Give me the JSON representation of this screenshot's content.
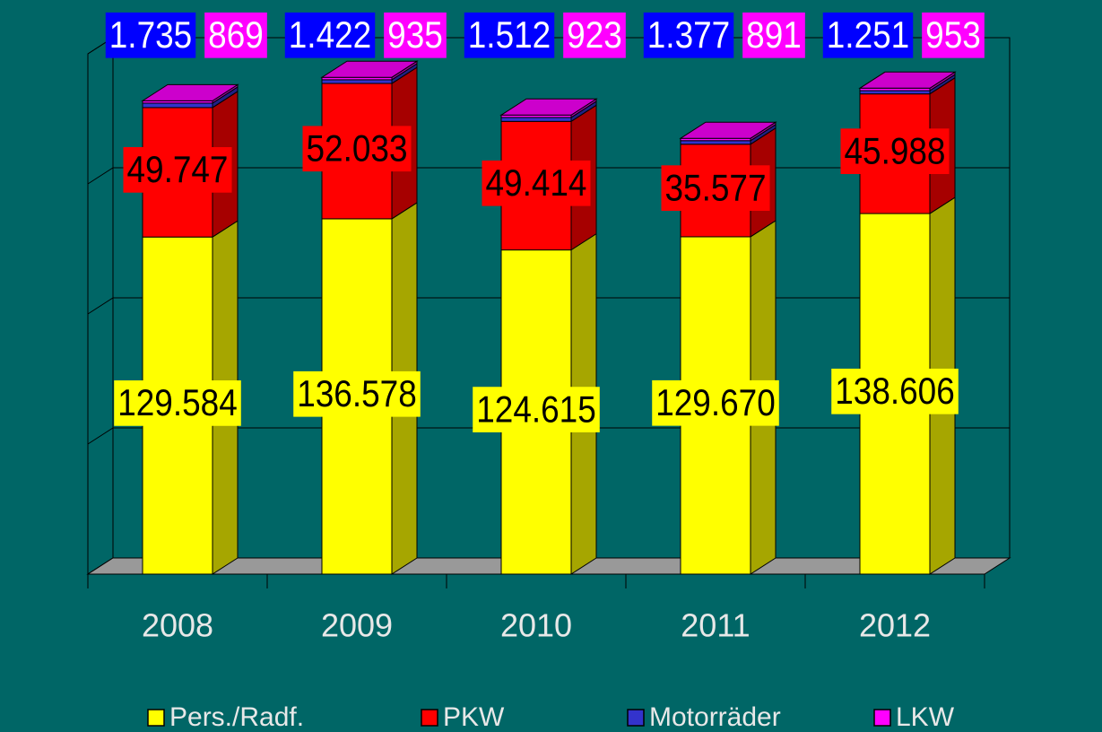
{
  "chart_data": {
    "type": "bar3d_stacked",
    "categories": [
      "2008",
      "2009",
      "2010",
      "2011",
      "2012"
    ],
    "series": [
      {
        "name": "Pers./Radf.",
        "color": "#ffff00",
        "values": [
          129584,
          136578,
          124615,
          129670,
          138606
        ],
        "value_labels": [
          "129.584",
          "136.578",
          "124.615",
          "129.670",
          "138.606"
        ]
      },
      {
        "name": "PKW",
        "color": "#ff0000",
        "values": [
          49747,
          52033,
          49414,
          35577,
          45988
        ],
        "value_labels": [
          "49.747",
          "52.033",
          "49.414",
          "35.577",
          "45.988"
        ]
      },
      {
        "name": "Motorräder",
        "color": "#3333cc",
        "values": [
          1735,
          1422,
          1512,
          1377,
          1251
        ],
        "value_labels": [
          "1.735",
          "1.422",
          "1.512",
          "1.377",
          "1.251"
        ]
      },
      {
        "name": "LKW",
        "color": "#ff00ff",
        "values": [
          869,
          935,
          923,
          891,
          953
        ],
        "value_labels": [
          "869",
          "935",
          "923",
          "891",
          "953"
        ]
      }
    ],
    "ylim": [
      0,
      200000
    ],
    "yticks": [
      0,
      50000,
      100000,
      150000,
      200000
    ],
    "grid": true,
    "legend": "bottom"
  }
}
